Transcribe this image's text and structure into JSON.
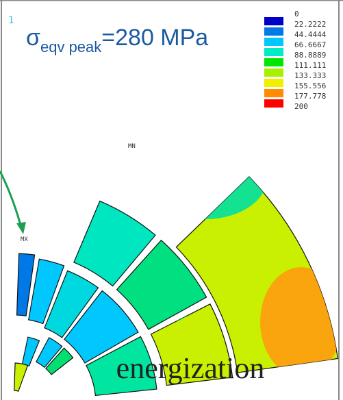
{
  "plot_number": "1",
  "annotation": {
    "symbol": "σ",
    "subscript": "eqv peak",
    "text": "=280 MPa"
  },
  "legend": {
    "labels": [
      "0",
      "22.2222",
      "44.4444",
      "66.6667",
      "88.8889",
      "111.111",
      "133.333",
      "155.556",
      "177.778",
      "200"
    ],
    "colors": [
      "#0000c8",
      "#0078e6",
      "#00c8ff",
      "#00ecc4",
      "#00e600",
      "#a8f000",
      "#f0f000",
      "#ff8c00",
      "#ff0000"
    ]
  },
  "markers": {
    "min": "MN",
    "max": "MX"
  },
  "caption": "energization"
}
